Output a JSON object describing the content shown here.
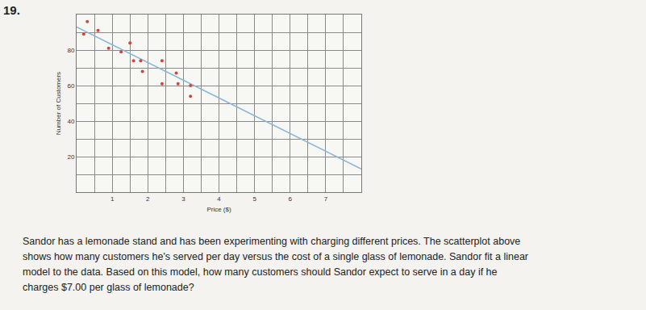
{
  "number": "19.",
  "problem_lines": [
    "Sandor has a lemonade stand and has been experimenting with charging different prices. The scatterplot above",
    "shows how many customers he's served per day versus the cost of a single glass of lemonade. Sandor fit a linear",
    "model to the data. Based on this model, how many customers should Sandor expect to serve in a day if he",
    "charges $7.00 per glass of lemonade?"
  ],
  "chart_data": {
    "type": "scatter",
    "x_label": "Price ($)",
    "y_label": "Number of Customers",
    "x": [
      0.3,
      0.2,
      0.6,
      0.9,
      1.5,
      1.25,
      1.6,
      1.8,
      1.85,
      2.4,
      2.8,
      2.4,
      2.85,
      3.2,
      3.2
    ],
    "values": [
      96,
      89,
      91,
      81,
      84,
      79,
      74,
      74,
      68,
      74,
      67,
      61,
      61,
      60,
      54
    ],
    "color": "#d9413a",
    "marker": "circle",
    "fit_line": {
      "x": [
        0,
        8
      ],
      "values": [
        93,
        13
      ],
      "color": "#86b5d6"
    },
    "xlim": [
      0,
      8
    ],
    "xticks": [
      1,
      2,
      3,
      4,
      5,
      6,
      7
    ],
    "ylim": [
      0,
      100
    ],
    "yticks": [
      20,
      40,
      60,
      80
    ],
    "grid": true
  }
}
